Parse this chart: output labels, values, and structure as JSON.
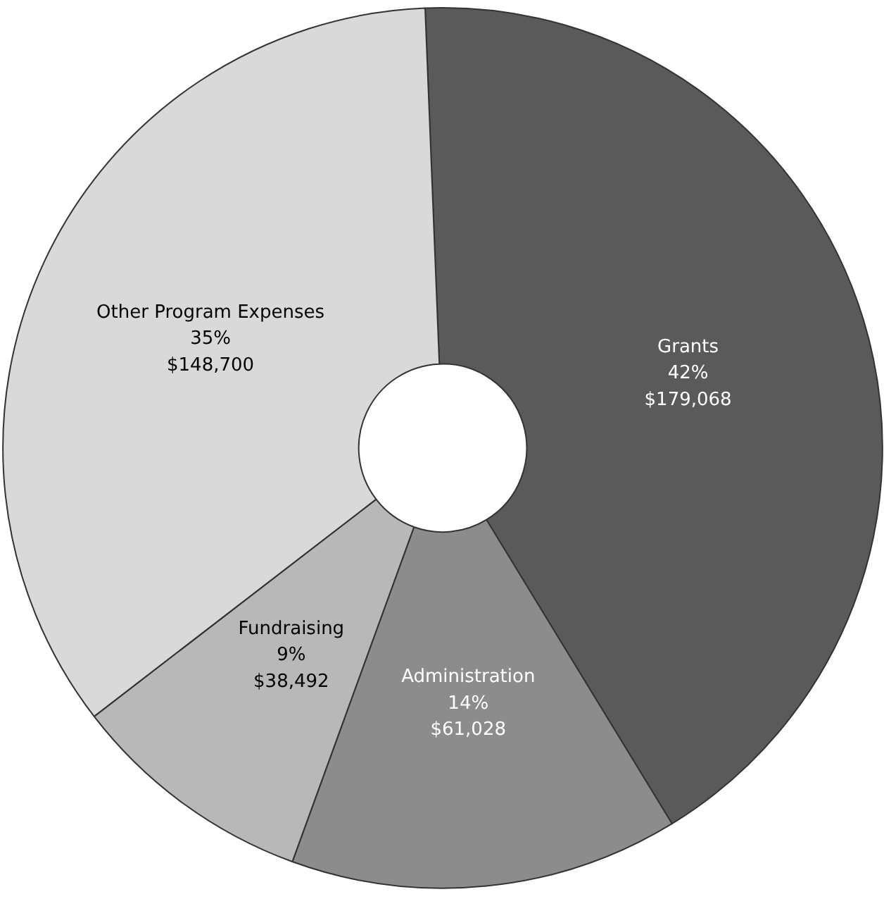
{
  "chart_data": {
    "type": "donut",
    "categories": [
      "Grants",
      "Administration",
      "Fundraising",
      "Other Program Expenses"
    ],
    "values": [
      179068,
      61028,
      38492,
      148700
    ],
    "value_labels": [
      "42%\n$179,068",
      "14%\n$61,028",
      "9%\n$38,492",
      "35%\n$148,700"
    ],
    "colors": [
      "#5a5a5a",
      "#8c8c8c",
      "#b8b8b8",
      "#d9d9d9"
    ],
    "legend": false
  }
}
